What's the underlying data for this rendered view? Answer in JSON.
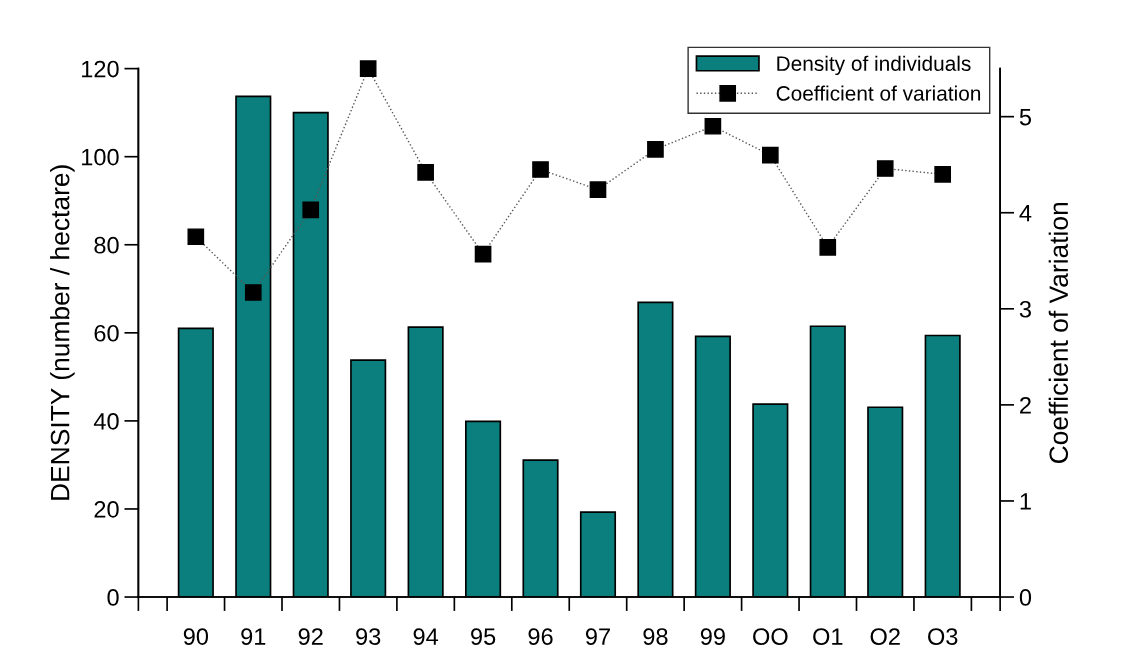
{
  "chart_data": {
    "type": "bar",
    "categories": [
      "90",
      "91",
      "92",
      "93",
      "94",
      "95",
      "96",
      "97",
      "98",
      "99",
      "OO",
      "O1",
      "O2",
      "O3"
    ],
    "series": [
      {
        "name": "Density of individuals",
        "color": "#0b7f7d",
        "values": [
          61.0,
          113.7,
          110.0,
          53.8,
          61.3,
          39.9,
          31.1,
          19.3,
          66.9,
          59.2,
          43.8,
          61.5,
          43.1,
          59.4
        ]
      },
      {
        "name": "Coefficient of variation",
        "type": "line",
        "axis": "y2",
        "color": "#000000",
        "marker": "square",
        "line_style": "dotted",
        "values": [
          3.75,
          3.17,
          4.03,
          5.5,
          4.42,
          3.57,
          4.45,
          4.24,
          4.66,
          4.9,
          4.6,
          3.64,
          4.46,
          4.4
        ]
      }
    ],
    "ylabel": "DENSITY (number / hectare)",
    "y2label": "Coefficient of Variation",
    "ylim": [
      0,
      120
    ],
    "yticks": [
      0,
      20,
      40,
      60,
      80,
      100,
      120
    ],
    "y2lim": [
      0,
      5.5
    ],
    "y2ticks": [
      0,
      1,
      2,
      3,
      4,
      5
    ],
    "legend": "top right",
    "grid": false
  }
}
